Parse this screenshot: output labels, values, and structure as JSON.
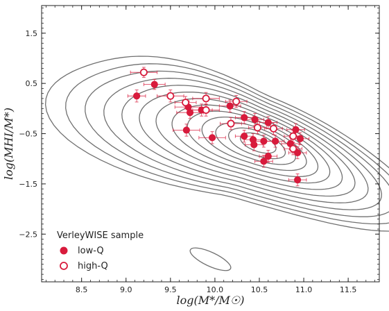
{
  "chart_data": {
    "type": "scatter",
    "xlabel": "log(M*/M☉)",
    "ylabel": "log(MHI/M*)",
    "xlim": [
      8.05,
      11.85
    ],
    "ylim": [
      -3.45,
      2.05
    ],
    "x_ticks": [
      8.5,
      9.0,
      9.5,
      10.0,
      10.5,
      11.0,
      11.5
    ],
    "x_tick_labels": [
      "8.5",
      "9.0",
      "9.5",
      "10.0",
      "10.5",
      "11.0",
      "11.5"
    ],
    "y_ticks": [
      1.5,
      0.5,
      -0.5,
      -1.5,
      -2.5
    ],
    "y_tick_labels": [
      "1.5",
      "0.5",
      "−0.5",
      "−1.5",
      "−2.5"
    ],
    "grid": false,
    "legend": {
      "title": "VerleyWISE sample",
      "position": "bottom-left",
      "entries": [
        {
          "label": "low-Q",
          "marker": "filled"
        },
        {
          "label": "high-Q",
          "marker": "open"
        }
      ]
    },
    "colors": {
      "points": "#d81b3c",
      "contours": "#707070"
    },
    "series": [
      {
        "name": "low-Q",
        "points": [
          {
            "x": 9.12,
            "y": 0.25,
            "xerr": 0.1,
            "yerr": 0.12
          },
          {
            "x": 9.32,
            "y": 0.48,
            "xerr": 0.12,
            "yerr": 0.1
          },
          {
            "x": 9.7,
            "y": 0.03,
            "xerr": 0.15,
            "yerr": 0.12
          },
          {
            "x": 9.72,
            "y": -0.08,
            "xerr": 0.15,
            "yerr": 0.12
          },
          {
            "x": 9.68,
            "y": -0.43,
            "xerr": 0.15,
            "yerr": 0.12
          },
          {
            "x": 9.85,
            "y": -0.03,
            "xerr": 0.12,
            "yerr": 0.12
          },
          {
            "x": 9.97,
            "y": -0.58,
            "xerr": 0.15,
            "yerr": 0.12
          },
          {
            "x": 10.17,
            "y": 0.05,
            "xerr": 0.12,
            "yerr": 0.12
          },
          {
            "x": 10.33,
            "y": -0.18,
            "xerr": 0.1,
            "yerr": 0.12
          },
          {
            "x": 10.33,
            "y": -0.55,
            "xerr": 0.1,
            "yerr": 0.12
          },
          {
            "x": 10.43,
            "y": -0.62,
            "xerr": 0.1,
            "yerr": 0.12
          },
          {
            "x": 10.44,
            "y": -0.72,
            "xerr": 0.1,
            "yerr": 0.12
          },
          {
            "x": 10.45,
            "y": -0.22,
            "xerr": 0.1,
            "yerr": 0.12
          },
          {
            "x": 10.55,
            "y": -0.65,
            "xerr": 0.1,
            "yerr": 0.12
          },
          {
            "x": 10.55,
            "y": -1.05,
            "xerr": 0.1,
            "yerr": 0.12
          },
          {
            "x": 10.6,
            "y": -0.28,
            "xerr": 0.1,
            "yerr": 0.12
          },
          {
            "x": 10.6,
            "y": -0.95,
            "xerr": 0.1,
            "yerr": 0.12
          },
          {
            "x": 10.68,
            "y": -0.65,
            "xerr": 0.1,
            "yerr": 0.12
          },
          {
            "x": 10.85,
            "y": -0.7,
            "xerr": 0.1,
            "yerr": 0.12
          },
          {
            "x": 10.91,
            "y": -0.42,
            "xerr": 0.1,
            "yerr": 0.12
          },
          {
            "x": 10.93,
            "y": -0.88,
            "xerr": 0.1,
            "yerr": 0.12
          },
          {
            "x": 10.96,
            "y": -0.6,
            "xerr": 0.1,
            "yerr": 0.12
          },
          {
            "x": 10.93,
            "y": -1.42,
            "xerr": 0.1,
            "yerr": 0.12
          }
        ]
      },
      {
        "name": "high-Q",
        "points": [
          {
            "x": 9.2,
            "y": 0.72,
            "xerr": 0.15,
            "yerr": 0.1
          },
          {
            "x": 9.5,
            "y": 0.25,
            "xerr": 0.15,
            "yerr": 0.12
          },
          {
            "x": 9.67,
            "y": 0.12,
            "xerr": 0.12,
            "yerr": 0.12
          },
          {
            "x": 9.9,
            "y": 0.2,
            "xerr": 0.15,
            "yerr": 0.12
          },
          {
            "x": 9.9,
            "y": -0.03,
            "xerr": 0.15,
            "yerr": 0.12
          },
          {
            "x": 10.18,
            "y": -0.3,
            "xerr": 0.12,
            "yerr": 0.12
          },
          {
            "x": 10.24,
            "y": 0.14,
            "xerr": 0.12,
            "yerr": 0.12
          },
          {
            "x": 10.48,
            "y": -0.38,
            "xerr": 0.1,
            "yerr": 0.12
          },
          {
            "x": 10.66,
            "y": -0.4,
            "xerr": 0.1,
            "yerr": 0.12
          },
          {
            "x": 10.88,
            "y": -0.55,
            "xerr": 0.1,
            "yerr": 0.12
          },
          {
            "x": 10.88,
            "y": -0.8,
            "xerr": 0.1,
            "yerr": 0.12
          }
        ]
      }
    ],
    "density_contours": {
      "center": {
        "x": 10.5,
        "y": -0.68
      },
      "levels": 13,
      "extra_island": {
        "x": 9.95,
        "y": -3.0
      }
    }
  }
}
